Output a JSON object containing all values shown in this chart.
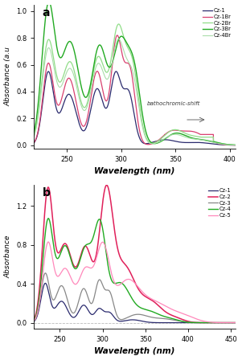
{
  "panel_a": {
    "title": "a",
    "xlabel": "Wavelength (nm)",
    "ylabel": "Absorbance (a.u",
    "xlim": [
      220,
      405
    ],
    "ylim": [
      -0.025,
      1.05
    ],
    "yticks": [
      0.0,
      0.2,
      0.4,
      0.6,
      0.8,
      1.0
    ],
    "xticks": [
      250,
      300,
      350,
      400
    ],
    "annotation": "bathochromic-shift",
    "series": [
      {
        "label": "Cz-1",
        "color": "#2b2b6e",
        "lw": 0.9,
        "ls": "-"
      },
      {
        "label": "Cz-1Br",
        "color": "#d94070",
        "lw": 0.9,
        "ls": "-"
      },
      {
        "label": "Cz-2Br",
        "color": "#90dd88",
        "lw": 0.9,
        "ls": "-"
      },
      {
        "label": "Cz-3Br",
        "color": "#22aa22",
        "lw": 1.0,
        "ls": "-"
      },
      {
        "label": "Cz-4Br",
        "color": "#aaddaa",
        "lw": 0.8,
        "ls": "-"
      }
    ]
  },
  "panel_b": {
    "title": "b",
    "xlabel": "Wavelength (nm)",
    "ylabel": "Absorbance",
    "xlim": [
      220,
      455
    ],
    "ylim": [
      -0.06,
      1.42
    ],
    "yticks": [
      0.0,
      0.4,
      0.8,
      1.2
    ],
    "xticks": [
      250,
      300,
      350,
      400,
      450
    ],
    "series": [
      {
        "label": "Cz-1",
        "color": "#2b2b6e",
        "lw": 0.9,
        "ls": "-"
      },
      {
        "label": "Cz-2",
        "color": "#e0205a",
        "lw": 1.1,
        "ls": "-"
      },
      {
        "label": "Cz-3",
        "color": "#888888",
        "lw": 0.9,
        "ls": "-"
      },
      {
        "label": "Cz-4",
        "color": "#22aa22",
        "lw": 1.0,
        "ls": "-"
      },
      {
        "label": "Cz-5",
        "color": "#ff88bb",
        "lw": 0.9,
        "ls": "-"
      }
    ]
  }
}
